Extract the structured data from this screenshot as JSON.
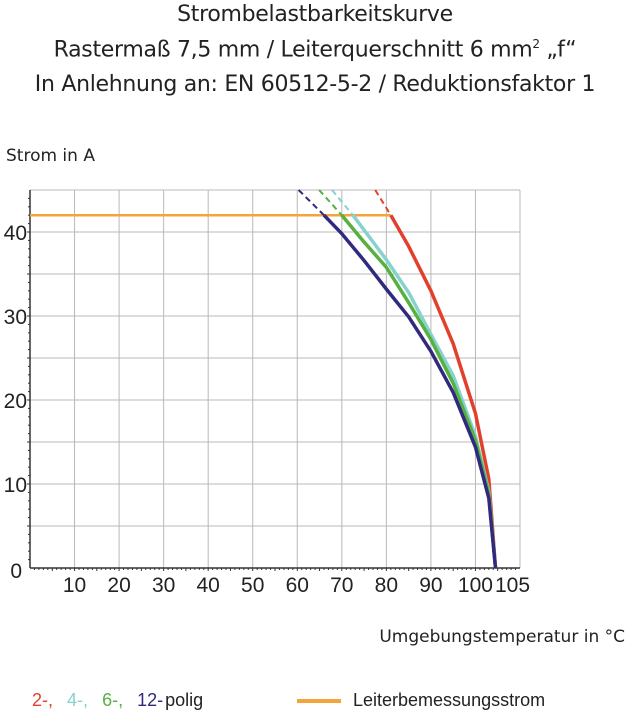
{
  "title_lines": [
    "Strombelastbarkeitskurve",
    "Rastermaß 7,5 mm / Leiterquerschnitt 6 mm",
    "In Anlehnung an: EN 60512-5-2 / Reduktionsfaktor 1"
  ],
  "title_sup": "2",
  "title_suffix": " „f“",
  "chart_data": {
    "type": "line",
    "title": "Strombelastbarkeitskurve",
    "xlabel": "Umgebungstemperatur in °C",
    "ylabel": "Strom in A",
    "xlim": [
      0,
      110
    ],
    "ylim": [
      0,
      45
    ],
    "xticks": [
      10,
      20,
      30,
      40,
      50,
      60,
      70,
      80,
      90,
      100,
      105
    ],
    "yticks": [
      0,
      10,
      20,
      30,
      40
    ],
    "grid": true,
    "legend_placement": "bottom",
    "rated_current": {
      "name": "Leiterbemessungsstrom",
      "value": 42,
      "x_range": [
        0,
        81
      ],
      "color": "#f4a53a"
    },
    "series": [
      {
        "name": "2-",
        "color": "#e2402c",
        "solid": [
          [
            81,
            42
          ],
          [
            85,
            38.3
          ],
          [
            90,
            33.0
          ],
          [
            95,
            26.7
          ],
          [
            100,
            18.4
          ],
          [
            103,
            10.6
          ],
          [
            104.5,
            0
          ]
        ],
        "dashed": [
          [
            77.5,
            45
          ],
          [
            81,
            42
          ]
        ]
      },
      {
        "name": "4-",
        "color": "#86d2cf",
        "solid": [
          [
            72.5,
            42
          ],
          [
            80,
            36.7
          ],
          [
            85,
            32.8
          ],
          [
            90,
            27.8
          ],
          [
            95,
            22.9
          ],
          [
            100,
            15.7
          ],
          [
            103,
            9.1
          ],
          [
            104.5,
            0
          ]
        ],
        "dashed": [
          [
            67.8,
            45
          ],
          [
            72.5,
            42
          ]
        ]
      },
      {
        "name": "6-",
        "color": "#58b040",
        "solid": [
          [
            70,
            42
          ],
          [
            75,
            38.8
          ],
          [
            80,
            35.8
          ],
          [
            85,
            31.6
          ],
          [
            90,
            27.2
          ],
          [
            95,
            22.0
          ],
          [
            100,
            15.2
          ],
          [
            103,
            8.8
          ],
          [
            104.5,
            0
          ]
        ],
        "dashed": [
          [
            64.9,
            45
          ],
          [
            70,
            42
          ]
        ]
      },
      {
        "name": "12-",
        "color": "#2f2a80",
        "solid": [
          [
            66,
            42
          ],
          [
            70,
            39.8
          ],
          [
            75,
            36.6
          ],
          [
            80,
            33.2
          ],
          [
            85,
            29.9
          ],
          [
            90,
            25.8
          ],
          [
            95,
            20.9
          ],
          [
            100,
            14.4
          ],
          [
            103,
            8.3
          ],
          [
            104.5,
            0
          ]
        ],
        "dashed": [
          [
            60.3,
            45
          ],
          [
            66,
            42
          ]
        ]
      }
    ]
  },
  "legend": {
    "suffix": "polig",
    "rated_label": "Leiterbemessungsstrom"
  }
}
